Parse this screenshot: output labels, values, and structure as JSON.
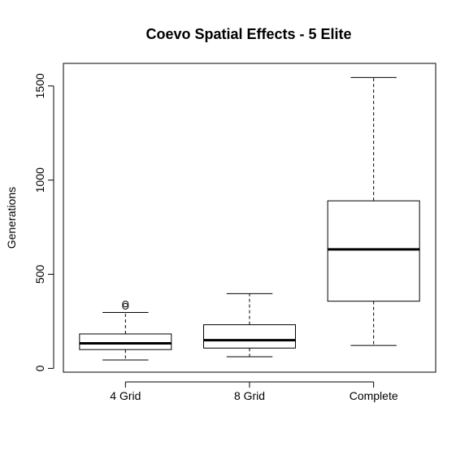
{
  "chart_data": {
    "type": "boxplot",
    "title": "Coevo Spatial Effects - 5 Elite",
    "xlabel": "",
    "ylabel": "Generations",
    "ylim": [
      -20,
      1620
    ],
    "yticks": [
      0,
      500,
      1000,
      1500
    ],
    "grid": false,
    "categories": [
      "4 Grid",
      "8 Grid",
      "Complete"
    ],
    "boxes": [
      {
        "category": "4 Grid",
        "whisker_low": 45,
        "q1": 100,
        "median": 133,
        "q3": 183,
        "whisker_high": 297,
        "outliers": [
          330,
          342
        ]
      },
      {
        "category": "8 Grid",
        "whisker_low": 62,
        "q1": 108,
        "median": 150,
        "q3": 232,
        "whisker_high": 397,
        "outliers": []
      },
      {
        "category": "Complete",
        "whisker_low": 122,
        "q1": 357,
        "median": 632,
        "q3": 890,
        "whisker_high": 1545,
        "outliers": []
      }
    ]
  }
}
